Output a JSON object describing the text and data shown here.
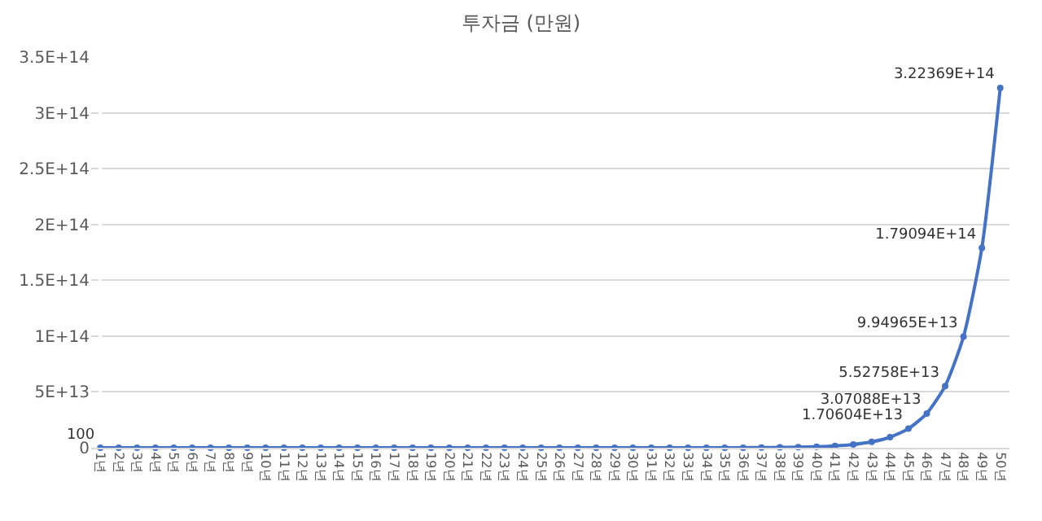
{
  "chart_data": {
    "type": "line",
    "title": "투자금 (만원)",
    "categories": [
      "1년",
      "2년",
      "3년",
      "4년",
      "5년",
      "6년",
      "7년",
      "8년",
      "9년",
      "10년",
      "11년",
      "12년",
      "13년",
      "14년",
      "15년",
      "16년",
      "17년",
      "18년",
      "19년",
      "20년",
      "21년",
      "22년",
      "23년",
      "24년",
      "25년",
      "26년",
      "27년",
      "28년",
      "29년",
      "30년",
      "31년",
      "32년",
      "33년",
      "34년",
      "35년",
      "36년",
      "37년",
      "38년",
      "39년",
      "40년",
      "41년",
      "42년",
      "43년",
      "44년",
      "45년",
      "46년",
      "47년",
      "48년",
      "49년",
      "50년"
    ],
    "series": [
      {
        "color": "#4472c4",
        "values": [
          100,
          180,
          324,
          583.2,
          1049.76,
          1889.568,
          3401.2224,
          6122.20032,
          11019.96058,
          19835.92904,
          35704.67227,
          64268.41008,
          115683.1381,
          208229.6487,
          374813.3676,
          674664.0616,
          1214395.311,
          2185911.56,
          3934640.808,
          7082353.454,
          12748236.22,
          22946825.19,
          41304285.34,
          74347713.61,
          133825884.5,
          240886592.1,
          433595865.8,
          780472558.4,
          1404850605,
          2528731089,
          4551715961,
          8193088729,
          14747559713,
          26545607483,
          47782093470,
          86007768246,
          154814000000.0,
          278665000000.0,
          501597000000.0,
          902875000000.0,
          1625180000000.0,
          2925320000000.0,
          5265570000000.0,
          9478020000000.0,
          17060400000000.0,
          30708800000000.0,
          55275800000000.0,
          99496500000000.0,
          179094000000000.0,
          322369000000000.0
        ],
        "value_labels": [
          "100",
          null,
          null,
          null,
          null,
          null,
          null,
          null,
          null,
          null,
          null,
          null,
          null,
          null,
          null,
          null,
          null,
          null,
          null,
          null,
          null,
          null,
          null,
          null,
          null,
          null,
          null,
          null,
          null,
          null,
          null,
          null,
          null,
          null,
          null,
          null,
          null,
          null,
          null,
          null,
          null,
          null,
          null,
          null,
          "1.70604E+13",
          "3.07088E+13",
          "5.52758E+13",
          "9.94965E+13",
          "1.79094E+14",
          "3.22369E+14"
        ]
      }
    ],
    "ylim": [
      0,
      350000000000000.0
    ],
    "yticks": [
      0,
      {
        "value": 50000000000000.0,
        "label": "5E+13"
      },
      {
        "value": 100000000000000.0,
        "label": "1E+14"
      },
      {
        "value": 150000000000000.0,
        "label": "1.5E+14"
      },
      {
        "value": 200000000000000.0,
        "label": "2E+14"
      },
      {
        "value": 250000000000000.0,
        "label": "2.5E+14"
      },
      {
        "value": 300000000000000.0,
        "label": "3E+14"
      },
      {
        "value": 350000000000000.0,
        "label": "3.5E+14"
      }
    ],
    "grid": "y",
    "marker": "circle",
    "line_style": "solid"
  }
}
